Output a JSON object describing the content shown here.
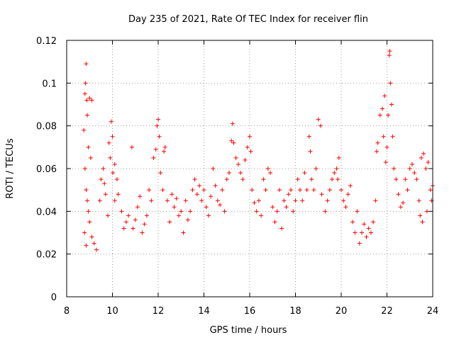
{
  "chart_data": {
    "type": "scatter",
    "title": "Day 235 of 2021, Rate Of TEC Index for receiver flin",
    "xlabel": "GPS time / hours",
    "ylabel": "ROTI / TECUs",
    "xlim": [
      8,
      24
    ],
    "ylim": [
      0,
      0.12
    ],
    "x_ticks": [
      "8",
      "10",
      "12",
      "14",
      "16",
      "18",
      "20",
      "22",
      "24"
    ],
    "y_ticks": [
      "0",
      "0.02",
      "0.04",
      "0.06",
      "0.08",
      "0.1",
      "0.12"
    ],
    "grid": true,
    "marker": "+",
    "color": "#ff0000",
    "series": [
      {
        "points": [
          [
            8.75,
            0.078
          ],
          [
            8.8,
            0.095
          ],
          [
            8.82,
            0.1
          ],
          [
            8.85,
            0.109
          ],
          [
            8.88,
            0.092
          ],
          [
            8.9,
            0.085
          ],
          [
            8.95,
            0.07
          ],
          [
            9.0,
            0.093
          ],
          [
            9.05,
            0.065
          ],
          [
            9.1,
            0.092
          ],
          [
            8.8,
            0.06
          ],
          [
            8.85,
            0.05
          ],
          [
            8.9,
            0.045
          ],
          [
            8.95,
            0.04
          ],
          [
            9.0,
            0.035
          ],
          [
            8.78,
            0.03
          ],
          [
            9.1,
            0.028
          ],
          [
            9.2,
            0.025
          ],
          [
            8.85,
            0.024
          ],
          [
            9.3,
            0.022
          ],
          [
            9.45,
            0.045
          ],
          [
            9.5,
            0.055
          ],
          [
            9.6,
            0.06
          ],
          [
            9.65,
            0.053
          ],
          [
            9.7,
            0.048
          ],
          [
            9.8,
            0.038
          ],
          [
            9.85,
            0.072
          ],
          [
            9.9,
            0.065
          ],
          [
            9.95,
            0.082
          ],
          [
            10.0,
            0.075
          ],
          [
            10.02,
            0.058
          ],
          [
            10.1,
            0.062
          ],
          [
            10.2,
            0.055
          ],
          [
            10.1,
            0.045
          ],
          [
            10.25,
            0.048
          ],
          [
            10.4,
            0.04
          ],
          [
            10.5,
            0.032
          ],
          [
            10.6,
            0.035
          ],
          [
            10.7,
            0.038
          ],
          [
            10.85,
            0.07
          ],
          [
            10.9,
            0.032
          ],
          [
            11.0,
            0.036
          ],
          [
            11.1,
            0.042
          ],
          [
            11.2,
            0.047
          ],
          [
            11.3,
            0.03
          ],
          [
            11.4,
            0.034
          ],
          [
            11.5,
            0.038
          ],
          [
            11.6,
            0.05
          ],
          [
            11.7,
            0.045
          ],
          [
            11.8,
            0.065
          ],
          [
            11.9,
            0.069
          ],
          [
            11.95,
            0.08
          ],
          [
            12.0,
            0.083
          ],
          [
            12.05,
            0.075
          ],
          [
            12.1,
            0.058
          ],
          [
            12.2,
            0.05
          ],
          [
            12.25,
            0.068
          ],
          [
            12.3,
            0.07
          ],
          [
            12.4,
            0.045
          ],
          [
            12.5,
            0.035
          ],
          [
            12.6,
            0.048
          ],
          [
            12.7,
            0.042
          ],
          [
            12.8,
            0.046
          ],
          [
            12.9,
            0.038
          ],
          [
            13.0,
            0.04
          ],
          [
            13.1,
            0.03
          ],
          [
            13.2,
            0.045
          ],
          [
            13.3,
            0.036
          ],
          [
            13.4,
            0.04
          ],
          [
            13.5,
            0.05
          ],
          [
            13.6,
            0.055
          ],
          [
            13.7,
            0.048
          ],
          [
            13.8,
            0.052
          ],
          [
            13.9,
            0.045
          ],
          [
            14.0,
            0.05
          ],
          [
            14.1,
            0.042
          ],
          [
            14.2,
            0.038
          ],
          [
            14.3,
            0.047
          ],
          [
            14.4,
            0.06
          ],
          [
            14.5,
            0.052
          ],
          [
            14.6,
            0.045
          ],
          [
            14.7,
            0.043
          ],
          [
            14.8,
            0.05
          ],
          [
            14.9,
            0.04
          ],
          [
            15.0,
            0.055
          ],
          [
            15.1,
            0.058
          ],
          [
            15.2,
            0.073
          ],
          [
            15.25,
            0.081
          ],
          [
            15.3,
            0.072
          ],
          [
            15.4,
            0.065
          ],
          [
            15.5,
            0.062
          ],
          [
            15.6,
            0.058
          ],
          [
            15.7,
            0.055
          ],
          [
            15.8,
            0.064
          ],
          [
            15.9,
            0.07
          ],
          [
            16.0,
            0.075
          ],
          [
            16.05,
            0.068
          ],
          [
            16.1,
            0.05
          ],
          [
            16.2,
            0.044
          ],
          [
            16.3,
            0.04
          ],
          [
            16.4,
            0.045
          ],
          [
            16.5,
            0.038
          ],
          [
            16.6,
            0.055
          ],
          [
            16.7,
            0.05
          ],
          [
            16.8,
            0.06
          ],
          [
            16.9,
            0.058
          ],
          [
            17.0,
            0.042
          ],
          [
            17.1,
            0.035
          ],
          [
            17.2,
            0.04
          ],
          [
            17.3,
            0.05
          ],
          [
            17.4,
            0.032
          ],
          [
            17.5,
            0.045
          ],
          [
            17.6,
            0.042
          ],
          [
            17.7,
            0.048
          ],
          [
            17.8,
            0.05
          ],
          [
            17.9,
            0.04
          ],
          [
            18.0,
            0.045
          ],
          [
            18.1,
            0.055
          ],
          [
            18.2,
            0.05
          ],
          [
            18.3,
            0.045
          ],
          [
            18.4,
            0.058
          ],
          [
            18.5,
            0.05
          ],
          [
            18.6,
            0.075
          ],
          [
            18.65,
            0.068
          ],
          [
            18.7,
            0.055
          ],
          [
            18.8,
            0.05
          ],
          [
            18.9,
            0.06
          ],
          [
            19.0,
            0.083
          ],
          [
            19.1,
            0.08
          ],
          [
            19.15,
            0.048
          ],
          [
            19.3,
            0.04
          ],
          [
            19.4,
            0.045
          ],
          [
            19.5,
            0.05
          ],
          [
            19.6,
            0.055
          ],
          [
            19.7,
            0.058
          ],
          [
            19.8,
            0.06
          ],
          [
            19.85,
            0.055
          ],
          [
            19.9,
            0.065
          ],
          [
            20.0,
            0.05
          ],
          [
            20.1,
            0.045
          ],
          [
            20.2,
            0.042
          ],
          [
            20.3,
            0.048
          ],
          [
            20.4,
            0.052
          ],
          [
            20.5,
            0.035
          ],
          [
            20.6,
            0.03
          ],
          [
            20.7,
            0.04
          ],
          [
            20.8,
            0.025
          ],
          [
            20.9,
            0.03
          ],
          [
            21.0,
            0.034
          ],
          [
            21.1,
            0.028
          ],
          [
            21.2,
            0.032
          ],
          [
            21.3,
            0.03
          ],
          [
            21.4,
            0.035
          ],
          [
            21.5,
            0.045
          ],
          [
            21.55,
            0.068
          ],
          [
            21.6,
            0.072
          ],
          [
            21.7,
            0.085
          ],
          [
            21.8,
            0.088
          ],
          [
            21.85,
            0.075
          ],
          [
            21.9,
            0.094
          ],
          [
            21.95,
            0.063
          ],
          [
            22.0,
            0.07
          ],
          [
            22.05,
            0.085
          ],
          [
            22.1,
            0.113
          ],
          [
            22.12,
            0.115
          ],
          [
            22.15,
            0.1
          ],
          [
            22.2,
            0.09
          ],
          [
            22.25,
            0.075
          ],
          [
            22.3,
            0.06
          ],
          [
            22.4,
            0.055
          ],
          [
            22.5,
            0.048
          ],
          [
            22.6,
            0.042
          ],
          [
            22.7,
            0.044
          ],
          [
            22.8,
            0.055
          ],
          [
            22.9,
            0.05
          ],
          [
            23.0,
            0.06
          ],
          [
            23.1,
            0.062
          ],
          [
            23.2,
            0.058
          ],
          [
            23.3,
            0.055
          ],
          [
            23.4,
            0.045
          ],
          [
            23.5,
            0.065
          ],
          [
            23.6,
            0.067
          ],
          [
            23.7,
            0.06
          ],
          [
            23.8,
            0.063
          ],
          [
            23.9,
            0.05
          ],
          [
            23.95,
            0.045
          ],
          [
            24.0,
            0.052
          ],
          [
            23.75,
            0.04
          ],
          [
            23.55,
            0.035
          ],
          [
            23.45,
            0.038
          ]
        ]
      }
    ]
  }
}
